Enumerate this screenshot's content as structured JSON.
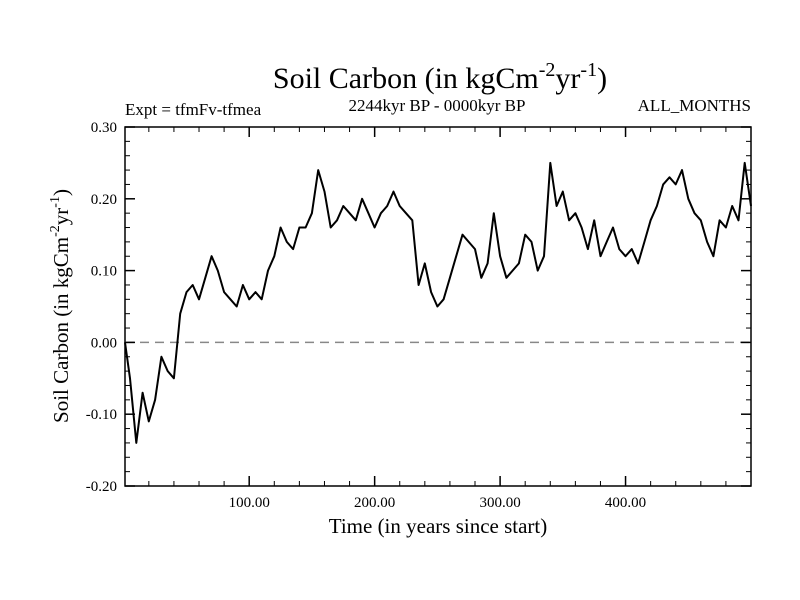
{
  "chart_data": {
    "type": "line",
    "title": {
      "main": "Soil Carbon (in kgCm",
      "sup1": "-2",
      "mid": "yr",
      "sup2": "-1",
      "end": ")"
    },
    "subtitle_left": "Expt = tfmFv-tfmea",
    "subtitle_center": "2244kyr BP - 0000kyr BP",
    "subtitle_right": "ALL_MONTHS",
    "xlabel": "Time (in years since start)",
    "ylabel": {
      "main": "Soil Carbon (in kgCm",
      "sup1": "-2",
      "mid": "yr",
      "sup2": "-1",
      "end": ")"
    },
    "xlim": [
      1,
      500
    ],
    "ylim": [
      -0.2,
      0.3
    ],
    "xticks": [
      100,
      200,
      300,
      400
    ],
    "xtick_labels": [
      "100.00",
      "200.00",
      "300.00",
      "400.00"
    ],
    "yticks": [
      -0.2,
      -0.1,
      0.0,
      0.1,
      0.2,
      0.3
    ],
    "ytick_labels": [
      "-0.20",
      "-0.10",
      "0.00",
      "0.10",
      "0.20",
      "0.30"
    ],
    "reference_line": {
      "y": 0.0,
      "style": "dashed",
      "color": "#888888"
    },
    "line_color": "#000000",
    "series": [
      {
        "name": "tfmFv-tfmea",
        "x": [
          1,
          5,
          10,
          15,
          20,
          25,
          30,
          35,
          40,
          45,
          50,
          55,
          60,
          65,
          70,
          75,
          80,
          85,
          90,
          95,
          100,
          105,
          110,
          115,
          120,
          125,
          130,
          135,
          140,
          145,
          150,
          155,
          160,
          165,
          170,
          175,
          180,
          185,
          190,
          195,
          200,
          205,
          210,
          215,
          220,
          225,
          230,
          235,
          240,
          245,
          250,
          255,
          260,
          265,
          270,
          275,
          280,
          285,
          290,
          295,
          300,
          305,
          310,
          315,
          320,
          325,
          330,
          335,
          340,
          345,
          350,
          355,
          360,
          365,
          370,
          375,
          380,
          385,
          390,
          395,
          400,
          405,
          410,
          415,
          420,
          425,
          430,
          435,
          440,
          445,
          450,
          455,
          460,
          465,
          470,
          475,
          480,
          485,
          490,
          495,
          500
        ],
        "values": [
          0.0,
          -0.05,
          -0.14,
          -0.07,
          -0.11,
          -0.08,
          -0.02,
          -0.04,
          -0.05,
          0.04,
          0.07,
          0.08,
          0.06,
          0.09,
          0.12,
          0.1,
          0.07,
          0.06,
          0.05,
          0.08,
          0.06,
          0.07,
          0.06,
          0.1,
          0.12,
          0.16,
          0.14,
          0.13,
          0.16,
          0.16,
          0.18,
          0.24,
          0.21,
          0.16,
          0.17,
          0.19,
          0.18,
          0.17,
          0.2,
          0.18,
          0.16,
          0.18,
          0.19,
          0.21,
          0.19,
          0.18,
          0.17,
          0.08,
          0.11,
          0.07,
          0.05,
          0.06,
          0.09,
          0.12,
          0.15,
          0.14,
          0.13,
          0.09,
          0.11,
          0.18,
          0.12,
          0.09,
          0.1,
          0.11,
          0.15,
          0.14,
          0.1,
          0.12,
          0.25,
          0.19,
          0.21,
          0.17,
          0.18,
          0.16,
          0.13,
          0.17,
          0.12,
          0.14,
          0.16,
          0.13,
          0.12,
          0.13,
          0.11,
          0.14,
          0.17,
          0.19,
          0.22,
          0.23,
          0.22,
          0.24,
          0.2,
          0.18,
          0.17,
          0.14,
          0.12,
          0.17,
          0.16,
          0.19,
          0.17,
          0.25,
          0.19
        ]
      }
    ]
  }
}
